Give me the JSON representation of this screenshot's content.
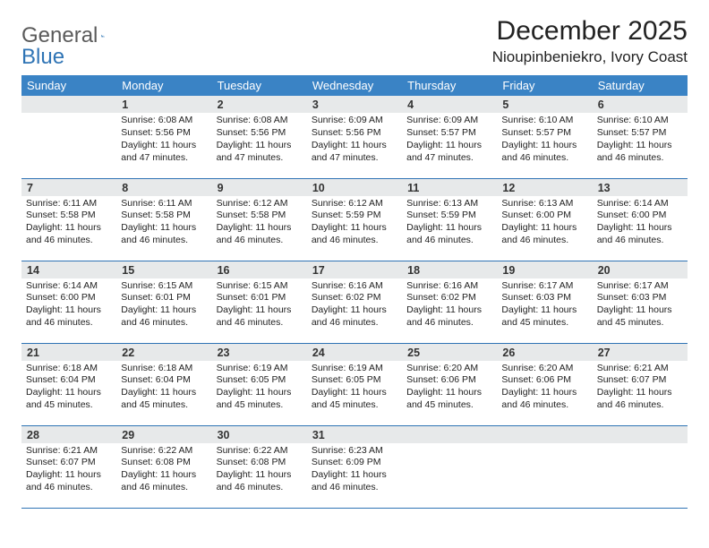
{
  "brand": {
    "general": "General",
    "blue": "Blue"
  },
  "title": "December 2025",
  "location": "Nioupinbeniekro, Ivory Coast",
  "colors": {
    "header_bg": "#3a83c5",
    "border": "#2f74b5",
    "daynum_bg": "#e7e9ea"
  },
  "weekdays": [
    "Sunday",
    "Monday",
    "Tuesday",
    "Wednesday",
    "Thursday",
    "Friday",
    "Saturday"
  ],
  "first_day_index": 1,
  "days": [
    {
      "n": 1,
      "sr": "6:08 AM",
      "ss": "5:56 PM",
      "dl": "11 hours and 47 minutes."
    },
    {
      "n": 2,
      "sr": "6:08 AM",
      "ss": "5:56 PM",
      "dl": "11 hours and 47 minutes."
    },
    {
      "n": 3,
      "sr": "6:09 AM",
      "ss": "5:56 PM",
      "dl": "11 hours and 47 minutes."
    },
    {
      "n": 4,
      "sr": "6:09 AM",
      "ss": "5:57 PM",
      "dl": "11 hours and 47 minutes."
    },
    {
      "n": 5,
      "sr": "6:10 AM",
      "ss": "5:57 PM",
      "dl": "11 hours and 46 minutes."
    },
    {
      "n": 6,
      "sr": "6:10 AM",
      "ss": "5:57 PM",
      "dl": "11 hours and 46 minutes."
    },
    {
      "n": 7,
      "sr": "6:11 AM",
      "ss": "5:58 PM",
      "dl": "11 hours and 46 minutes."
    },
    {
      "n": 8,
      "sr": "6:11 AM",
      "ss": "5:58 PM",
      "dl": "11 hours and 46 minutes."
    },
    {
      "n": 9,
      "sr": "6:12 AM",
      "ss": "5:58 PM",
      "dl": "11 hours and 46 minutes."
    },
    {
      "n": 10,
      "sr": "6:12 AM",
      "ss": "5:59 PM",
      "dl": "11 hours and 46 minutes."
    },
    {
      "n": 11,
      "sr": "6:13 AM",
      "ss": "5:59 PM",
      "dl": "11 hours and 46 minutes."
    },
    {
      "n": 12,
      "sr": "6:13 AM",
      "ss": "6:00 PM",
      "dl": "11 hours and 46 minutes."
    },
    {
      "n": 13,
      "sr": "6:14 AM",
      "ss": "6:00 PM",
      "dl": "11 hours and 46 minutes."
    },
    {
      "n": 14,
      "sr": "6:14 AM",
      "ss": "6:00 PM",
      "dl": "11 hours and 46 minutes."
    },
    {
      "n": 15,
      "sr": "6:15 AM",
      "ss": "6:01 PM",
      "dl": "11 hours and 46 minutes."
    },
    {
      "n": 16,
      "sr": "6:15 AM",
      "ss": "6:01 PM",
      "dl": "11 hours and 46 minutes."
    },
    {
      "n": 17,
      "sr": "6:16 AM",
      "ss": "6:02 PM",
      "dl": "11 hours and 46 minutes."
    },
    {
      "n": 18,
      "sr": "6:16 AM",
      "ss": "6:02 PM",
      "dl": "11 hours and 46 minutes."
    },
    {
      "n": 19,
      "sr": "6:17 AM",
      "ss": "6:03 PM",
      "dl": "11 hours and 45 minutes."
    },
    {
      "n": 20,
      "sr": "6:17 AM",
      "ss": "6:03 PM",
      "dl": "11 hours and 45 minutes."
    },
    {
      "n": 21,
      "sr": "6:18 AM",
      "ss": "6:04 PM",
      "dl": "11 hours and 45 minutes."
    },
    {
      "n": 22,
      "sr": "6:18 AM",
      "ss": "6:04 PM",
      "dl": "11 hours and 45 minutes."
    },
    {
      "n": 23,
      "sr": "6:19 AM",
      "ss": "6:05 PM",
      "dl": "11 hours and 45 minutes."
    },
    {
      "n": 24,
      "sr": "6:19 AM",
      "ss": "6:05 PM",
      "dl": "11 hours and 45 minutes."
    },
    {
      "n": 25,
      "sr": "6:20 AM",
      "ss": "6:06 PM",
      "dl": "11 hours and 45 minutes."
    },
    {
      "n": 26,
      "sr": "6:20 AM",
      "ss": "6:06 PM",
      "dl": "11 hours and 46 minutes."
    },
    {
      "n": 27,
      "sr": "6:21 AM",
      "ss": "6:07 PM",
      "dl": "11 hours and 46 minutes."
    },
    {
      "n": 28,
      "sr": "6:21 AM",
      "ss": "6:07 PM",
      "dl": "11 hours and 46 minutes."
    },
    {
      "n": 29,
      "sr": "6:22 AM",
      "ss": "6:08 PM",
      "dl": "11 hours and 46 minutes."
    },
    {
      "n": 30,
      "sr": "6:22 AM",
      "ss": "6:08 PM",
      "dl": "11 hours and 46 minutes."
    },
    {
      "n": 31,
      "sr": "6:23 AM",
      "ss": "6:09 PM",
      "dl": "11 hours and 46 minutes."
    }
  ],
  "labels": {
    "sunrise": "Sunrise:",
    "sunset": "Sunset:",
    "daylight": "Daylight:"
  }
}
